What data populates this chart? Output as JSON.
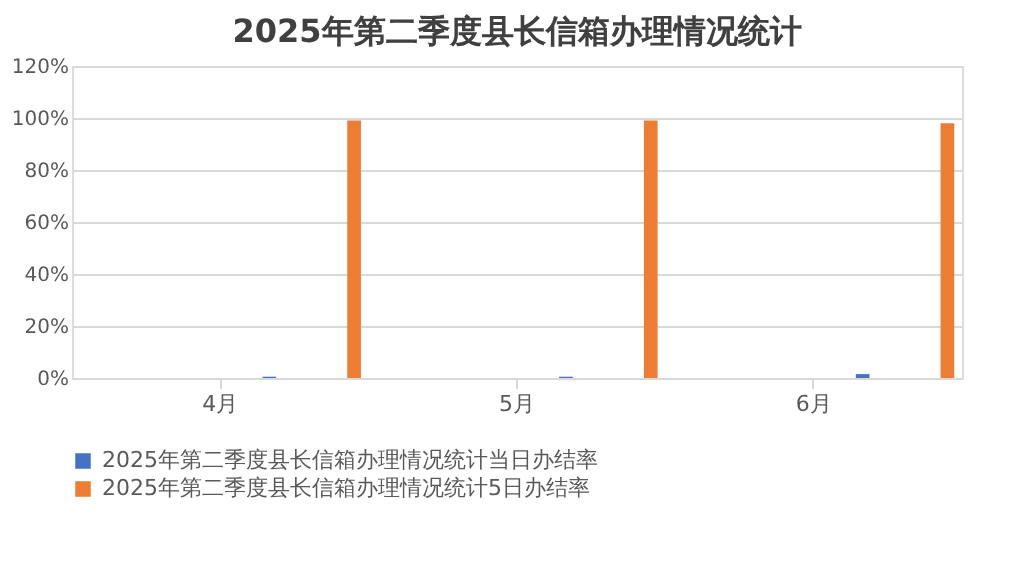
{
  "chart_data": {
    "type": "bar",
    "title": "2025年第二季度县长信箱办理情况统计",
    "categories": [
      "4月",
      "5月",
      "6月"
    ],
    "series": [
      {
        "name": "2025年第二季度县长信箱办理情况统计当日办结率",
        "color": "#4472c4",
        "values": [
          0.5,
          0.5,
          1.5
        ]
      },
      {
        "name": "2025年第二季度县长信箱办理情况统计5日办结率",
        "color": "#ed7d31",
        "values": [
          99,
          99,
          98
        ]
      }
    ],
    "ylim": [
      0,
      120
    ],
    "yticks": [
      {
        "value": 0,
        "label": "0%"
      },
      {
        "value": 20,
        "label": "20%"
      },
      {
        "value": 40,
        "label": "40%"
      },
      {
        "value": 60,
        "label": "60%"
      },
      {
        "value": 80,
        "label": "80%"
      },
      {
        "value": 100,
        "label": "100%"
      },
      {
        "value": 120,
        "label": "120%"
      }
    ],
    "grid": "y",
    "legend": "bottom"
  }
}
